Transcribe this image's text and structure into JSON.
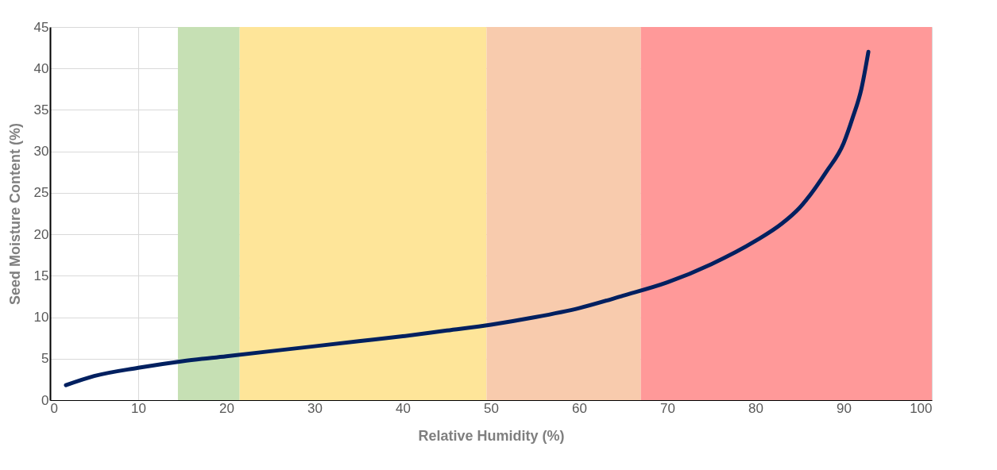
{
  "chart_data": {
    "type": "line",
    "xlabel": "Relative Humidity (%)",
    "ylabel": "Seed Moisture Content (%)",
    "x": [
      1.8,
      5,
      10,
      15,
      20,
      25,
      30,
      35,
      40,
      45,
      50,
      55,
      60,
      65,
      70,
      75,
      80,
      83,
      85,
      88,
      90,
      91,
      92,
      92.8
    ],
    "series": [
      {
        "color": "#002060",
        "values": [
          1.8,
          2.9,
          3.9,
          4.7,
          5.3,
          5.9,
          6.5,
          7.1,
          7.7,
          8.4,
          9.1,
          10,
          11.1,
          12.6,
          14.2,
          16.4,
          19.2,
          21.3,
          23.2,
          27.5,
          31,
          34,
          37.5,
          42
        ]
      }
    ],
    "xlim": [
      0,
      100
    ],
    "xticks": [
      0,
      10,
      20,
      30,
      40,
      50,
      60,
      70,
      80,
      90,
      100
    ],
    "ylim": [
      0,
      45
    ],
    "yticks": [
      0,
      5,
      10,
      15,
      20,
      25,
      30,
      35,
      40,
      45
    ],
    "bands": [
      {
        "axis": "x",
        "from": 14.5,
        "to": 21.5,
        "color": "#c6e0b4"
      },
      {
        "axis": "x",
        "from": 21.5,
        "to": 49.5,
        "color": "#fee599"
      },
      {
        "axis": "x",
        "from": 49.5,
        "to": 67,
        "color": "#f8cbad"
      },
      {
        "axis": "x",
        "from": 67,
        "to": 100,
        "color": "#ff9999"
      }
    ],
    "grid": true,
    "marker": "none",
    "line_style": "solid"
  }
}
